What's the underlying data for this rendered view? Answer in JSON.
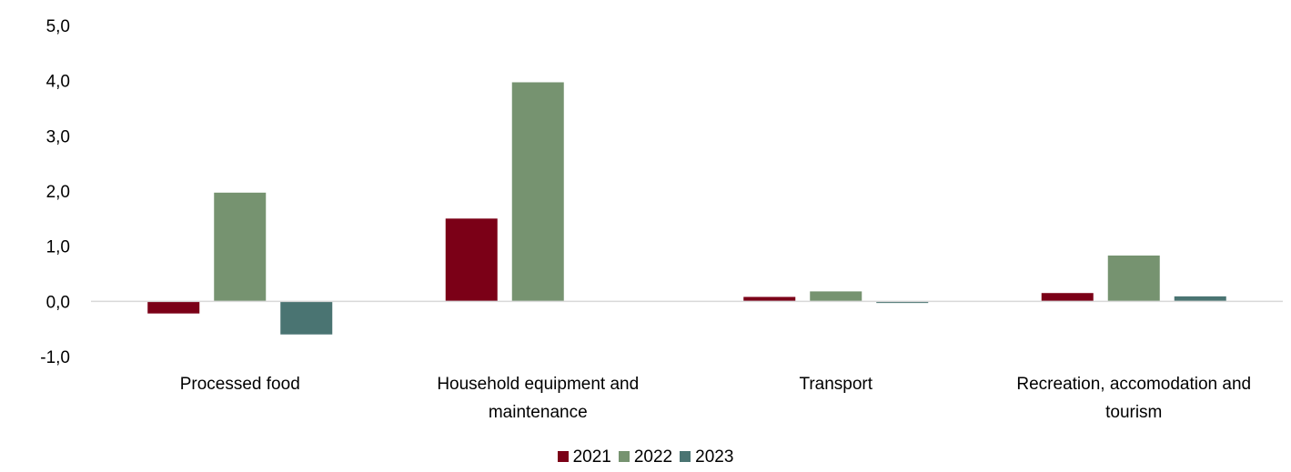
{
  "chart_data": {
    "type": "bar",
    "categories": [
      [
        "Processed food"
      ],
      [
        "Household equipment and",
        "maintenance"
      ],
      [
        "Transport"
      ],
      [
        "Recreation, accomodation and",
        "tourism"
      ]
    ],
    "series": [
      {
        "name": "2021",
        "color": "#7B0017",
        "values": [
          -0.22,
          1.5,
          0.08,
          0.15
        ]
      },
      {
        "name": "2022",
        "color": "#769370",
        "values": [
          1.97,
          3.97,
          0.18,
          0.83
        ]
      },
      {
        "name": "2023",
        "color": "#4A7472",
        "values": [
          -0.6,
          0.0,
          -0.03,
          0.09
        ]
      }
    ],
    "ylim": [
      -1.0,
      5.0
    ],
    "yticks": [
      "-1,0",
      "0,0",
      "1,0",
      "2,0",
      "3,0",
      "4,0",
      "5,0"
    ],
    "ytick_values": [
      -1,
      0,
      1,
      2,
      3,
      4,
      5
    ],
    "grid": false,
    "legend_position": "bottom-center"
  }
}
